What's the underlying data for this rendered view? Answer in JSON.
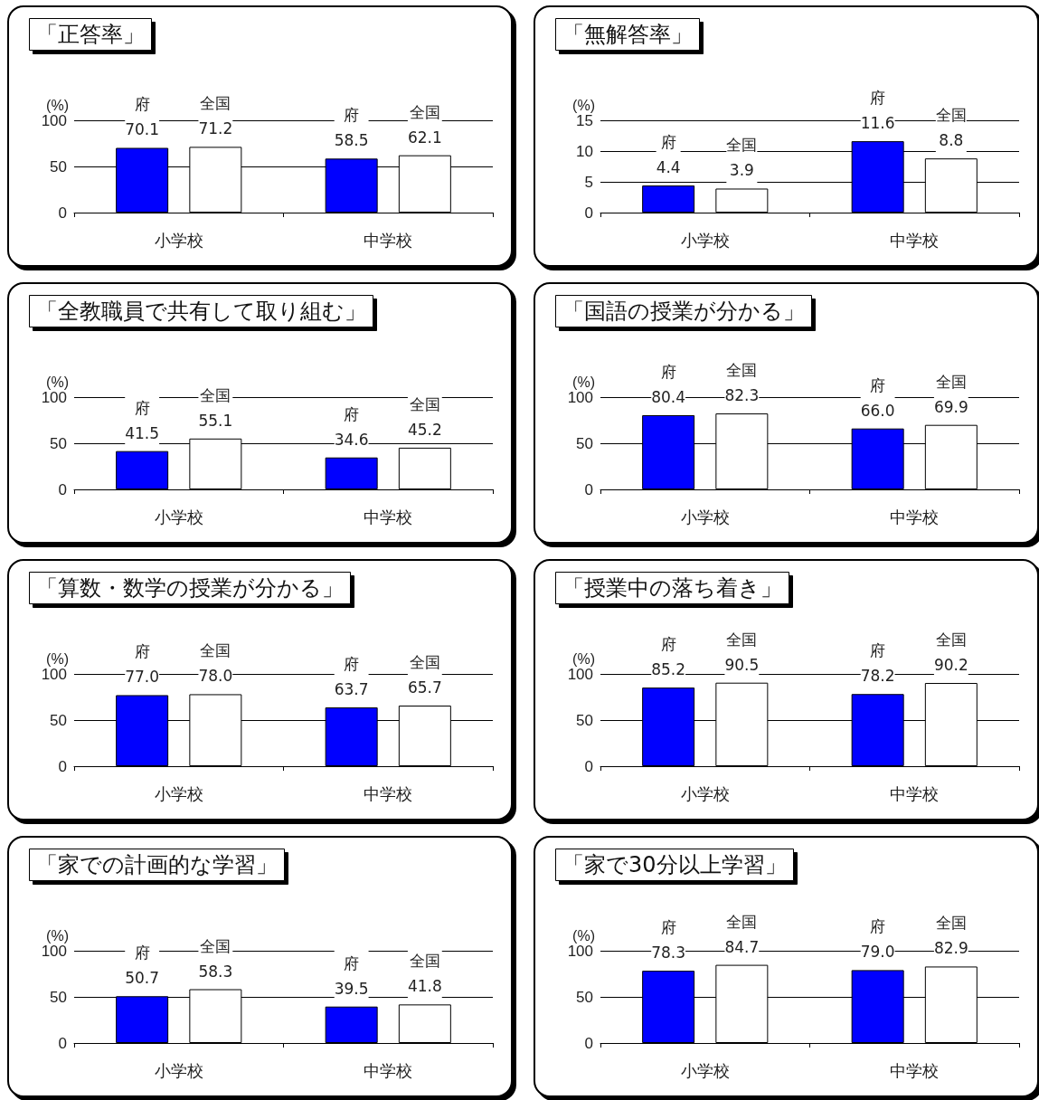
{
  "chart_data": [
    {
      "type": "bar",
      "title": "「正答率」",
      "ylabel": "(%)",
      "categories": [
        "小学校",
        "中学校"
      ],
      "ylim": [
        0,
        100
      ],
      "yticks": [
        0,
        50,
        100
      ],
      "grid": "y",
      "series": [
        {
          "name": "府",
          "color": "#0000ff",
          "values": [
            70.1,
            58.5
          ],
          "value_labels": [
            "70.1",
            "58.5"
          ]
        },
        {
          "name": "全国",
          "color": "#ffffff",
          "values": [
            71.2,
            62.1
          ],
          "value_labels": [
            "71.2",
            "62.1"
          ]
        }
      ]
    },
    {
      "type": "bar",
      "title": "「無解答率」",
      "ylabel": "(%)",
      "categories": [
        "小学校",
        "中学校"
      ],
      "ylim": [
        0,
        15
      ],
      "yticks": [
        0,
        5,
        10,
        15
      ],
      "grid": "y",
      "series": [
        {
          "name": "府",
          "color": "#0000ff",
          "values": [
            4.4,
            11.6
          ],
          "value_labels": [
            "4.4",
            "11.6"
          ]
        },
        {
          "name": "全国",
          "color": "#ffffff",
          "values": [
            3.9,
            8.8
          ],
          "value_labels": [
            "3.9",
            "8.8"
          ]
        }
      ]
    },
    {
      "type": "bar",
      "title": "「全教職員で共有して取り組む」",
      "ylabel": "(%)",
      "categories": [
        "小学校",
        "中学校"
      ],
      "ylim": [
        0,
        100
      ],
      "yticks": [
        0,
        50,
        100
      ],
      "grid": "y",
      "series": [
        {
          "name": "府",
          "color": "#0000ff",
          "values": [
            41.5,
            34.6
          ],
          "value_labels": [
            "41.5",
            "34.6"
          ]
        },
        {
          "name": "全国",
          "color": "#ffffff",
          "values": [
            55.1,
            45.2
          ],
          "value_labels": [
            "55.1",
            "45.2"
          ]
        }
      ]
    },
    {
      "type": "bar",
      "title": "「国語の授業が分かる」",
      "ylabel": "(%)",
      "categories": [
        "小学校",
        "中学校"
      ],
      "ylim": [
        0,
        100
      ],
      "yticks": [
        0,
        50,
        100
      ],
      "grid": "y",
      "series": [
        {
          "name": "府",
          "color": "#0000ff",
          "values": [
            80.4,
            66.0
          ],
          "value_labels": [
            "80.4",
            "66.0"
          ]
        },
        {
          "name": "全国",
          "color": "#ffffff",
          "values": [
            82.3,
            69.9
          ],
          "value_labels": [
            "82.3",
            "69.9"
          ]
        }
      ]
    },
    {
      "type": "bar",
      "title": "「算数・数学の授業が分かる」",
      "ylabel": "(%)",
      "categories": [
        "小学校",
        "中学校"
      ],
      "ylim": [
        0,
        100
      ],
      "yticks": [
        0,
        50,
        100
      ],
      "grid": "y",
      "series": [
        {
          "name": "府",
          "color": "#0000ff",
          "values": [
            77.0,
            63.7
          ],
          "value_labels": [
            "77.0",
            "63.7"
          ]
        },
        {
          "name": "全国",
          "color": "#ffffff",
          "values": [
            78.0,
            65.7
          ],
          "value_labels": [
            "78.0",
            "65.7"
          ]
        }
      ]
    },
    {
      "type": "bar",
      "title": "「授業中の落ち着き」",
      "ylabel": "(%)",
      "categories": [
        "小学校",
        "中学校"
      ],
      "ylim": [
        0,
        100
      ],
      "yticks": [
        0,
        50,
        100
      ],
      "grid": "y",
      "series": [
        {
          "name": "府",
          "color": "#0000ff",
          "values": [
            85.2,
            78.2
          ],
          "value_labels": [
            "85.2",
            "78.2"
          ]
        },
        {
          "name": "全国",
          "color": "#ffffff",
          "values": [
            90.5,
            90.2
          ],
          "value_labels": [
            "90.5",
            "90.2"
          ]
        }
      ]
    },
    {
      "type": "bar",
      "title": "「家での計画的な学習」",
      "ylabel": "(%)",
      "categories": [
        "小学校",
        "中学校"
      ],
      "ylim": [
        0,
        100
      ],
      "yticks": [
        0,
        50,
        100
      ],
      "grid": "y",
      "series": [
        {
          "name": "府",
          "color": "#0000ff",
          "values": [
            50.7,
            39.5
          ],
          "value_labels": [
            "50.7",
            "39.5"
          ]
        },
        {
          "name": "全国",
          "color": "#ffffff",
          "values": [
            58.3,
            41.8
          ],
          "value_labels": [
            "58.3",
            "41.8"
          ]
        }
      ]
    },
    {
      "type": "bar",
      "title": "「家で30分以上学習」",
      "ylabel": "(%)",
      "categories": [
        "小学校",
        "中学校"
      ],
      "ylim": [
        0,
        100
      ],
      "yticks": [
        0,
        50,
        100
      ],
      "grid": "y",
      "series": [
        {
          "name": "府",
          "color": "#0000ff",
          "values": [
            78.3,
            79.0
          ],
          "value_labels": [
            "78.3",
            "79.0"
          ]
        },
        {
          "name": "全国",
          "color": "#ffffff",
          "values": [
            84.7,
            82.9
          ],
          "value_labels": [
            "84.7",
            "82.9"
          ]
        }
      ]
    }
  ]
}
